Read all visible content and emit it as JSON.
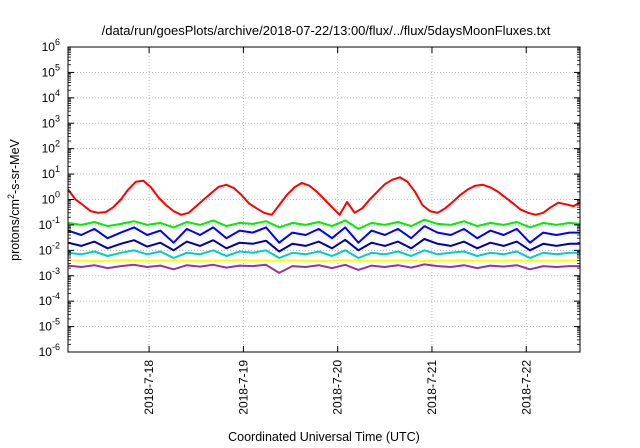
{
  "chart_data": {
    "type": "line",
    "title": "/data/run/goesPlots/archive/2018-07-22/13:00/flux/../flux/5daysMoonFluxes.txt",
    "xlabel": "Coordinated Universal Time (UTC)",
    "ylabel": {
      "prefix": "protons/cm",
      "sup": "2",
      "suffix": "-s-sr-MeV"
    },
    "yscale": "log",
    "ylim_exp": [
      -6,
      6
    ],
    "ytick_labels": [
      {
        "base": "10",
        "exp": "-6"
      },
      {
        "base": "10",
        "exp": "-5"
      },
      {
        "base": "10",
        "exp": "-4"
      },
      {
        "base": "10",
        "exp": "-3"
      },
      {
        "base": "10",
        "exp": "-2"
      },
      {
        "base": "10",
        "exp": "-1"
      },
      {
        "base": "10",
        "exp": "0"
      },
      {
        "base": "10",
        "exp": "1"
      },
      {
        "base": "10",
        "exp": "2"
      },
      {
        "base": "10",
        "exp": "3"
      },
      {
        "base": "10",
        "exp": "4"
      },
      {
        "base": "10",
        "exp": "5"
      },
      {
        "base": "10",
        "exp": "6"
      }
    ],
    "xlim_days": [
      17.14,
      22.57
    ],
    "xticks": [
      {
        "day": 18,
        "label": "2018-7-18"
      },
      {
        "day": 19,
        "label": "2018-7-19"
      },
      {
        "day": 20,
        "label": "2018-7-20"
      },
      {
        "day": 21,
        "label": "2018-7-21"
      },
      {
        "day": 22,
        "label": "2018-7-22"
      }
    ],
    "grid": true,
    "series": [
      {
        "color": "#ff0000",
        "x": [
          17.14,
          17.22,
          17.3,
          17.38,
          17.46,
          17.54,
          17.62,
          17.7,
          17.78,
          17.86,
          17.94,
          18.02,
          18.1,
          18.18,
          18.26,
          18.34,
          18.42,
          18.5,
          18.58,
          18.66,
          18.74,
          18.82,
          18.9,
          18.98,
          19.06,
          19.14,
          19.22,
          19.3,
          19.38,
          19.46,
          19.54,
          19.62,
          19.7,
          19.78,
          19.86,
          19.94,
          20.02,
          20.1,
          20.18,
          20.26,
          20.34,
          20.42,
          20.5,
          20.58,
          20.66,
          20.74,
          20.82,
          20.9,
          20.98,
          21.06,
          21.14,
          21.22,
          21.3,
          21.38,
          21.46,
          21.54,
          21.62,
          21.7,
          21.78,
          21.86,
          21.94,
          22.02,
          22.1,
          22.18,
          22.26,
          22.34,
          22.42,
          22.5,
          22.57
        ],
        "y": [
          2.5,
          1.0,
          0.6,
          0.35,
          0.3,
          0.32,
          0.5,
          1.0,
          2.5,
          5.0,
          5.5,
          3.0,
          1.2,
          0.6,
          0.35,
          0.25,
          0.3,
          0.55,
          1.0,
          1.8,
          3.2,
          3.8,
          2.8,
          1.5,
          0.7,
          0.45,
          0.3,
          0.25,
          0.6,
          1.5,
          3.0,
          4.5,
          3.5,
          2.0,
          1.0,
          0.5,
          0.25,
          0.8,
          0.3,
          0.45,
          1.0,
          2.0,
          4.0,
          6.0,
          7.5,
          5.0,
          2.0,
          0.6,
          0.35,
          0.3,
          0.45,
          0.8,
          1.5,
          2.5,
          3.5,
          3.8,
          3.0,
          2.0,
          1.2,
          0.7,
          0.4,
          0.3,
          0.25,
          0.3,
          0.5,
          0.75,
          0.65,
          0.55,
          0.75
        ]
      },
      {
        "color": "#00ee00",
        "x": [
          17.14,
          17.28,
          17.42,
          17.56,
          17.7,
          17.84,
          17.98,
          18.12,
          18.26,
          18.4,
          18.54,
          18.68,
          18.82,
          18.96,
          19.1,
          19.24,
          19.38,
          19.52,
          19.66,
          19.8,
          19.94,
          20.08,
          20.22,
          20.36,
          20.5,
          20.64,
          20.78,
          20.92,
          21.06,
          21.2,
          21.34,
          21.48,
          21.62,
          21.76,
          21.9,
          22.04,
          22.18,
          22.32,
          22.46,
          22.57
        ],
        "y": [
          0.12,
          0.1,
          0.13,
          0.09,
          0.11,
          0.14,
          0.1,
          0.12,
          0.08,
          0.13,
          0.1,
          0.15,
          0.09,
          0.12,
          0.11,
          0.14,
          0.08,
          0.12,
          0.1,
          0.13,
          0.09,
          0.15,
          0.07,
          0.12,
          0.1,
          0.13,
          0.09,
          0.16,
          0.11,
          0.1,
          0.14,
          0.09,
          0.12,
          0.1,
          0.13,
          0.08,
          0.12,
          0.1,
          0.12,
          0.11
        ]
      },
      {
        "color": "#00cccc",
        "x": [
          17.14,
          17.28,
          17.42,
          17.56,
          17.7,
          17.84,
          17.98,
          18.12,
          18.26,
          18.4,
          18.54,
          18.68,
          18.82,
          18.96,
          19.1,
          19.24,
          19.38,
          19.52,
          19.66,
          19.8,
          19.94,
          20.08,
          20.22,
          20.36,
          20.5,
          20.64,
          20.78,
          20.92,
          21.06,
          21.2,
          21.34,
          21.48,
          21.62,
          21.76,
          21.9,
          22.04,
          22.18,
          22.32,
          22.46,
          22.57
        ],
        "y": [
          0.008,
          0.007,
          0.009,
          0.006,
          0.008,
          0.01,
          0.007,
          0.009,
          0.005,
          0.008,
          0.007,
          0.01,
          0.006,
          0.009,
          0.008,
          0.01,
          0.005,
          0.008,
          0.007,
          0.009,
          0.006,
          0.01,
          0.005,
          0.008,
          0.007,
          0.009,
          0.006,
          0.01,
          0.007,
          0.008,
          0.009,
          0.006,
          0.008,
          0.007,
          0.009,
          0.005,
          0.008,
          0.007,
          0.008,
          0.008
        ]
      },
      {
        "color": "#0000ff",
        "x": [
          17.14,
          17.28,
          17.42,
          17.56,
          17.7,
          17.84,
          17.98,
          18.12,
          18.26,
          18.4,
          18.54,
          18.68,
          18.82,
          18.96,
          19.1,
          19.24,
          19.38,
          19.52,
          19.66,
          19.8,
          19.94,
          20.08,
          20.22,
          20.36,
          20.5,
          20.64,
          20.78,
          20.92,
          21.06,
          21.2,
          21.34,
          21.48,
          21.62,
          21.76,
          21.9,
          22.04,
          22.18,
          22.32,
          22.46,
          22.57
        ],
        "y": [
          0.06,
          0.04,
          0.07,
          0.03,
          0.05,
          0.08,
          0.04,
          0.06,
          0.02,
          0.07,
          0.04,
          0.08,
          0.03,
          0.06,
          0.05,
          0.08,
          0.02,
          0.05,
          0.04,
          0.07,
          0.03,
          0.08,
          0.02,
          0.06,
          0.04,
          0.07,
          0.03,
          0.09,
          0.05,
          0.04,
          0.07,
          0.03,
          0.06,
          0.04,
          0.07,
          0.02,
          0.05,
          0.04,
          0.05,
          0.05
        ]
      },
      {
        "color": "#0000aa",
        "x": [
          17.14,
          17.28,
          17.42,
          17.56,
          17.7,
          17.84,
          17.98,
          18.12,
          18.26,
          18.4,
          18.54,
          18.68,
          18.82,
          18.96,
          19.1,
          19.24,
          19.38,
          19.52,
          19.66,
          19.8,
          19.94,
          20.08,
          20.22,
          20.36,
          20.5,
          20.64,
          20.78,
          20.92,
          21.06,
          21.2,
          21.34,
          21.48,
          21.62,
          21.76,
          21.9,
          22.04,
          22.18,
          22.32,
          22.46,
          22.57
        ],
        "y": [
          0.02,
          0.015,
          0.022,
          0.012,
          0.018,
          0.025,
          0.014,
          0.02,
          0.01,
          0.022,
          0.015,
          0.025,
          0.012,
          0.02,
          0.018,
          0.024,
          0.009,
          0.018,
          0.015,
          0.022,
          0.012,
          0.026,
          0.01,
          0.02,
          0.015,
          0.022,
          0.012,
          0.028,
          0.018,
          0.015,
          0.022,
          0.012,
          0.02,
          0.015,
          0.022,
          0.01,
          0.018,
          0.015,
          0.018,
          0.018
        ]
      },
      {
        "color": "#ffff00",
        "x": [
          17.14,
          17.4,
          17.7,
          18.0,
          18.3,
          18.6,
          18.9,
          19.2,
          19.5,
          19.8,
          20.1,
          20.4,
          20.7,
          21.0,
          21.3,
          21.6,
          21.9,
          22.2,
          22.57
        ],
        "y": [
          0.004,
          0.0038,
          0.0041,
          0.0039,
          0.004,
          0.0038,
          0.0041,
          0.0039,
          0.004,
          0.0038,
          0.0041,
          0.0039,
          0.004,
          0.0038,
          0.0041,
          0.0039,
          0.004,
          0.0039,
          0.004
        ]
      },
      {
        "color": "#993399",
        "x": [
          17.14,
          17.28,
          17.42,
          17.56,
          17.7,
          17.84,
          17.98,
          18.12,
          18.26,
          18.4,
          18.54,
          18.68,
          18.82,
          18.96,
          19.1,
          19.24,
          19.38,
          19.52,
          19.66,
          19.8,
          19.94,
          20.08,
          20.22,
          20.36,
          20.5,
          20.64,
          20.78,
          20.92,
          21.06,
          21.2,
          21.34,
          21.48,
          21.62,
          21.76,
          21.9,
          22.04,
          22.18,
          22.32,
          22.46,
          22.57
        ],
        "y": [
          0.0025,
          0.0022,
          0.0026,
          0.002,
          0.0024,
          0.0027,
          0.0022,
          0.0025,
          0.0018,
          0.0026,
          0.0023,
          0.0027,
          0.0021,
          0.0025,
          0.0024,
          0.0027,
          0.0013,
          0.0024,
          0.0022,
          0.0026,
          0.002,
          0.0027,
          0.0017,
          0.0025,
          0.0022,
          0.0026,
          0.0021,
          0.0028,
          0.0024,
          0.0022,
          0.0026,
          0.002,
          0.0025,
          0.0023,
          0.0026,
          0.0018,
          0.0024,
          0.0022,
          0.0024,
          0.0024
        ]
      }
    ]
  }
}
